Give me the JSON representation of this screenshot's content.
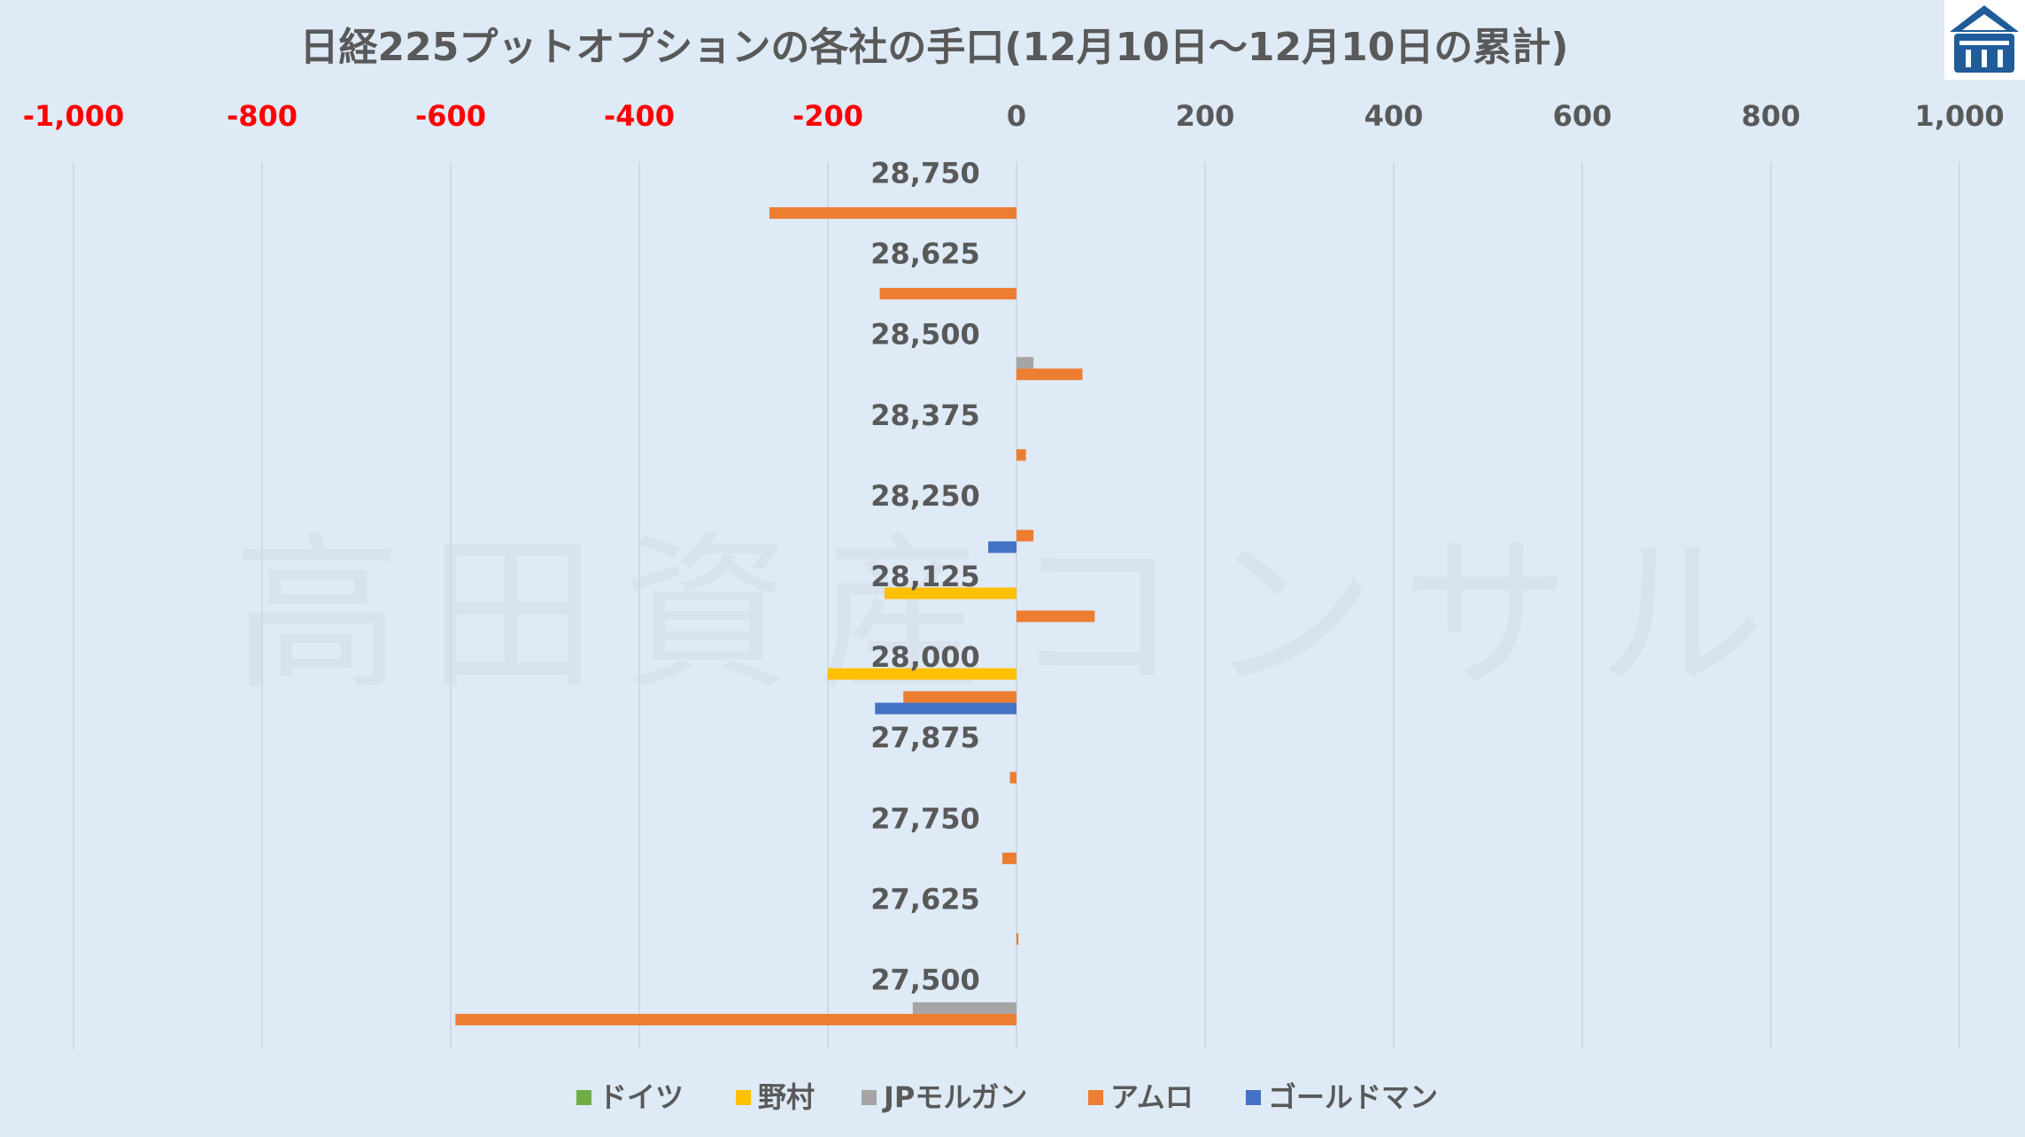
{
  "chart_data": {
    "type": "bar",
    "orientation": "horizontal",
    "title": "日経225プットオプションの各社の手口(12月10日～12月10日の累計)",
    "watermark": "高田資産コンサル",
    "xlim": [
      -1000,
      1000
    ],
    "x_ticks": [
      -1000,
      -800,
      -600,
      -400,
      -200,
      0,
      200,
      400,
      600,
      800,
      1000
    ],
    "x_tick_labels": [
      "-1,000",
      "-800",
      "-600",
      "-400",
      "-200",
      "0",
      "200",
      "400",
      "600",
      "800",
      "1,000"
    ],
    "negative_tick_color": "#ff0000",
    "positive_tick_color": "#595959",
    "categories": [
      "28,750",
      "28,625",
      "28,500",
      "28,375",
      "28,250",
      "28,125",
      "28,000",
      "27,875",
      "27,750",
      "27,625",
      "27,500"
    ],
    "series": [
      {
        "name": "ドイツ",
        "color": "#70ad47",
        "values": [
          0,
          0,
          0,
          0,
          0,
          0,
          0,
          0,
          0,
          0,
          0
        ]
      },
      {
        "name": "野村",
        "color": "#ffc000",
        "values": [
          0,
          0,
          0,
          0,
          0,
          -140,
          -200,
          0,
          0,
          0,
          0
        ]
      },
      {
        "name": "JPモルガン",
        "color": "#a5a5a5",
        "values": [
          0,
          0,
          18,
          0,
          0,
          0,
          0,
          0,
          0,
          0,
          -110
        ]
      },
      {
        "name": "アムロ",
        "color": "#ed7d31",
        "values": [
          -262,
          -145,
          70,
          10,
          18,
          83,
          -120,
          -7,
          -15,
          2,
          -595
        ]
      },
      {
        "name": "ゴールドマン",
        "color": "#4472c4",
        "values": [
          0,
          0,
          0,
          0,
          -30,
          0,
          -150,
          0,
          0,
          0,
          0
        ]
      }
    ],
    "grid": true,
    "legend_position": "bottom"
  },
  "logo": {
    "name": "takata-logo-icon",
    "color": "#1f5c99"
  }
}
